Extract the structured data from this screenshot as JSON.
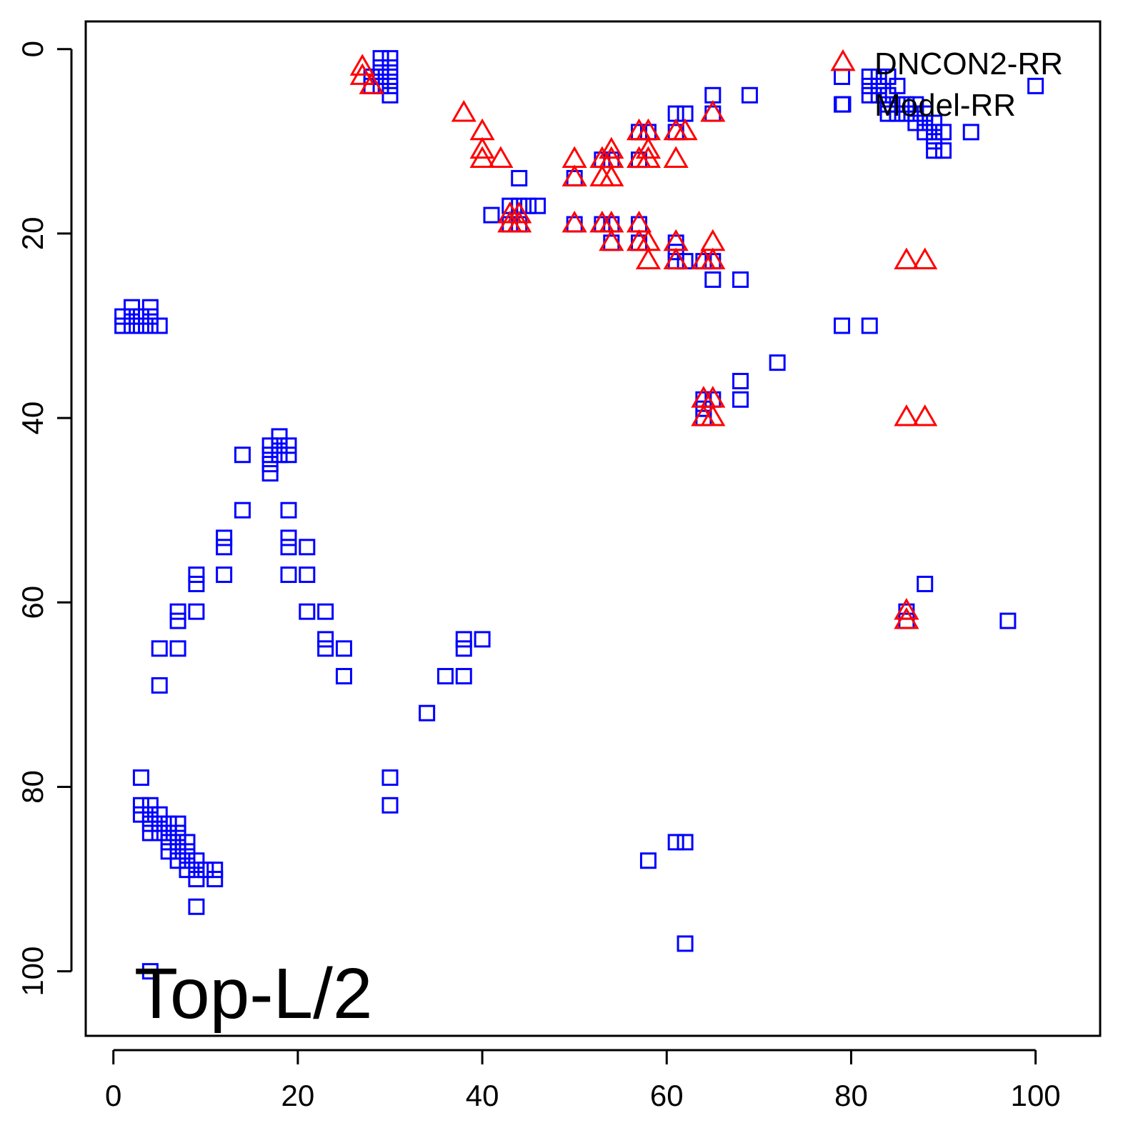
{
  "chart_data": {
    "type": "scatter",
    "title": "",
    "xlabel": "",
    "ylabel": "",
    "xlim": [
      -3,
      107
    ],
    "ylim": [
      -3,
      107
    ],
    "y_inverted": true,
    "grid": false,
    "x_ticks": [
      0,
      20,
      40,
      60,
      80,
      100
    ],
    "y_ticks": [
      0,
      20,
      40,
      60,
      80,
      100
    ],
    "x_tick_labels": [
      "0",
      "20",
      "40",
      "60",
      "80",
      "100"
    ],
    "y_tick_labels": [
      "0",
      "20",
      "40",
      "60",
      "80",
      "100"
    ],
    "annotation": "Top-L/2",
    "legend": {
      "position": "top-right",
      "entries": [
        {
          "label": "DNCON2-RR",
          "color": "#ff0000",
          "marker": "triangle"
        },
        {
          "label": "Model-RR",
          "color": "#0000ff",
          "marker": "square"
        }
      ]
    },
    "series": [
      {
        "name": "DNCON2-RR",
        "marker": "triangle",
        "color": "#ff0000",
        "points": [
          [
            27,
            2
          ],
          [
            27,
            3
          ],
          [
            28,
            4
          ],
          [
            38,
            7
          ],
          [
            40,
            9
          ],
          [
            40,
            11
          ],
          [
            40,
            12
          ],
          [
            42,
            12
          ],
          [
            43,
            18
          ],
          [
            43,
            19
          ],
          [
            44,
            18
          ],
          [
            44,
            19
          ],
          [
            50,
            12
          ],
          [
            50,
            14
          ],
          [
            50,
            19
          ],
          [
            53,
            12
          ],
          [
            53,
            14
          ],
          [
            53,
            19
          ],
          [
            54,
            11
          ],
          [
            54,
            12
          ],
          [
            54,
            14
          ],
          [
            54,
            19
          ],
          [
            54,
            21
          ],
          [
            57,
            9
          ],
          [
            57,
            12
          ],
          [
            57,
            19
          ],
          [
            57,
            21
          ],
          [
            58,
            9
          ],
          [
            58,
            11
          ],
          [
            58,
            12
          ],
          [
            58,
            21
          ],
          [
            58,
            23
          ],
          [
            61,
            9
          ],
          [
            61,
            12
          ],
          [
            61,
            21
          ],
          [
            61,
            23
          ],
          [
            62,
            9
          ],
          [
            64,
            23
          ],
          [
            65,
            7
          ],
          [
            65,
            21
          ],
          [
            65,
            23
          ],
          [
            64,
            38
          ],
          [
            64,
            40
          ],
          [
            65,
            38
          ],
          [
            65,
            40
          ],
          [
            86,
            23
          ],
          [
            88,
            23
          ],
          [
            86,
            40
          ],
          [
            88,
            40
          ],
          [
            86,
            61
          ],
          [
            86,
            62
          ]
        ]
      },
      {
        "name": "Model-RR",
        "marker": "square",
        "color": "#0000ff",
        "points": [
          [
            29,
            1
          ],
          [
            30,
            1
          ],
          [
            29,
            2
          ],
          [
            30,
            2
          ],
          [
            29,
            3
          ],
          [
            30,
            3
          ],
          [
            28,
            3
          ],
          [
            29,
            4
          ],
          [
            30,
            4
          ],
          [
            28,
            4
          ],
          [
            30,
            5
          ],
          [
            1,
            29
          ],
          [
            1,
            30
          ],
          [
            2,
            28
          ],
          [
            2,
            29
          ],
          [
            2,
            30
          ],
          [
            3,
            29
          ],
          [
            3,
            30
          ],
          [
            4,
            28
          ],
          [
            4,
            29
          ],
          [
            4,
            30
          ],
          [
            5,
            30
          ],
          [
            44,
            14
          ],
          [
            41,
            18
          ],
          [
            43,
            17
          ],
          [
            44,
            17
          ],
          [
            45,
            17
          ],
          [
            46,
            17
          ],
          [
            43,
            19
          ],
          [
            44,
            19
          ],
          [
            50,
            14
          ],
          [
            50,
            19
          ],
          [
            53,
            12
          ],
          [
            54,
            12
          ],
          [
            53,
            19
          ],
          [
            54,
            19
          ],
          [
            54,
            21
          ],
          [
            57,
            9
          ],
          [
            58,
            9
          ],
          [
            57,
            12
          ],
          [
            57,
            19
          ],
          [
            57,
            21
          ],
          [
            61,
            7
          ],
          [
            62,
            7
          ],
          [
            61,
            9
          ],
          [
            61,
            21
          ],
          [
            61,
            22
          ],
          [
            61,
            23
          ],
          [
            62,
            23
          ],
          [
            64,
            23
          ],
          [
            65,
            5
          ],
          [
            65,
            7
          ],
          [
            65,
            23
          ],
          [
            65,
            25
          ],
          [
            69,
            5
          ],
          [
            68,
            25
          ],
          [
            79,
            3
          ],
          [
            79,
            6
          ],
          [
            82,
            3
          ],
          [
            82,
            4
          ],
          [
            82,
            5
          ],
          [
            83,
            3
          ],
          [
            83,
            4
          ],
          [
            83,
            5
          ],
          [
            84,
            3
          ],
          [
            84,
            5
          ],
          [
            84,
            6
          ],
          [
            84,
            7
          ],
          [
            85,
            4
          ],
          [
            85,
            6
          ],
          [
            85,
            7
          ],
          [
            86,
            6
          ],
          [
            86,
            7
          ],
          [
            87,
            6
          ],
          [
            87,
            7
          ],
          [
            87,
            8
          ],
          [
            88,
            7
          ],
          [
            88,
            8
          ],
          [
            88,
            9
          ],
          [
            89,
            8
          ],
          [
            89,
            9
          ],
          [
            89,
            10
          ],
          [
            89,
            11
          ],
          [
            90,
            9
          ],
          [
            90,
            11
          ],
          [
            93,
            9
          ],
          [
            100,
            4
          ],
          [
            79,
            30
          ],
          [
            82,
            30
          ],
          [
            72,
            34
          ],
          [
            68,
            36
          ],
          [
            68,
            38
          ],
          [
            64,
            38
          ],
          [
            64,
            39
          ],
          [
            64,
            40
          ],
          [
            65,
            38
          ],
          [
            18,
            42
          ],
          [
            17,
            43
          ],
          [
            18,
            43
          ],
          [
            19,
            43
          ],
          [
            17,
            44
          ],
          [
            18,
            44
          ],
          [
            19,
            44
          ],
          [
            17,
            45
          ],
          [
            17,
            46
          ],
          [
            14,
            44
          ],
          [
            14,
            50
          ],
          [
            19,
            50
          ],
          [
            12,
            53
          ],
          [
            12,
            54
          ],
          [
            19,
            53
          ],
          [
            19,
            54
          ],
          [
            21,
            54
          ],
          [
            12,
            57
          ],
          [
            19,
            57
          ],
          [
            21,
            57
          ],
          [
            9,
            57
          ],
          [
            9,
            58
          ],
          [
            7,
            61
          ],
          [
            7,
            62
          ],
          [
            9,
            61
          ],
          [
            21,
            61
          ],
          [
            23,
            61
          ],
          [
            23,
            64
          ],
          [
            23,
            65
          ],
          [
            25,
            65
          ],
          [
            25,
            68
          ],
          [
            5,
            65
          ],
          [
            7,
            65
          ],
          [
            5,
            69
          ],
          [
            34,
            72
          ],
          [
            36,
            68
          ],
          [
            38,
            68
          ],
          [
            38,
            64
          ],
          [
            38,
            65
          ],
          [
            40,
            64
          ],
          [
            30,
            79
          ],
          [
            30,
            82
          ],
          [
            3,
            79
          ],
          [
            3,
            82
          ],
          [
            3,
            83
          ],
          [
            4,
            82
          ],
          [
            4,
            83
          ],
          [
            4,
            84
          ],
          [
            4,
            85
          ],
          [
            5,
            83
          ],
          [
            5,
            84
          ],
          [
            5,
            85
          ],
          [
            6,
            84
          ],
          [
            6,
            85
          ],
          [
            6,
            86
          ],
          [
            6,
            87
          ],
          [
            7,
            84
          ],
          [
            7,
            85
          ],
          [
            7,
            86
          ],
          [
            7,
            87
          ],
          [
            7,
            88
          ],
          [
            8,
            86
          ],
          [
            8,
            87
          ],
          [
            8,
            88
          ],
          [
            8,
            89
          ],
          [
            9,
            88
          ],
          [
            9,
            89
          ],
          [
            9,
            90
          ],
          [
            10,
            89
          ],
          [
            11,
            89
          ],
          [
            11,
            90
          ],
          [
            9,
            93
          ],
          [
            4,
            100
          ],
          [
            58,
            88
          ],
          [
            61,
            86
          ],
          [
            62,
            86
          ],
          [
            62,
            97
          ],
          [
            86,
            61
          ],
          [
            86,
            62
          ],
          [
            88,
            58
          ],
          [
            97,
            62
          ]
        ]
      }
    ]
  }
}
